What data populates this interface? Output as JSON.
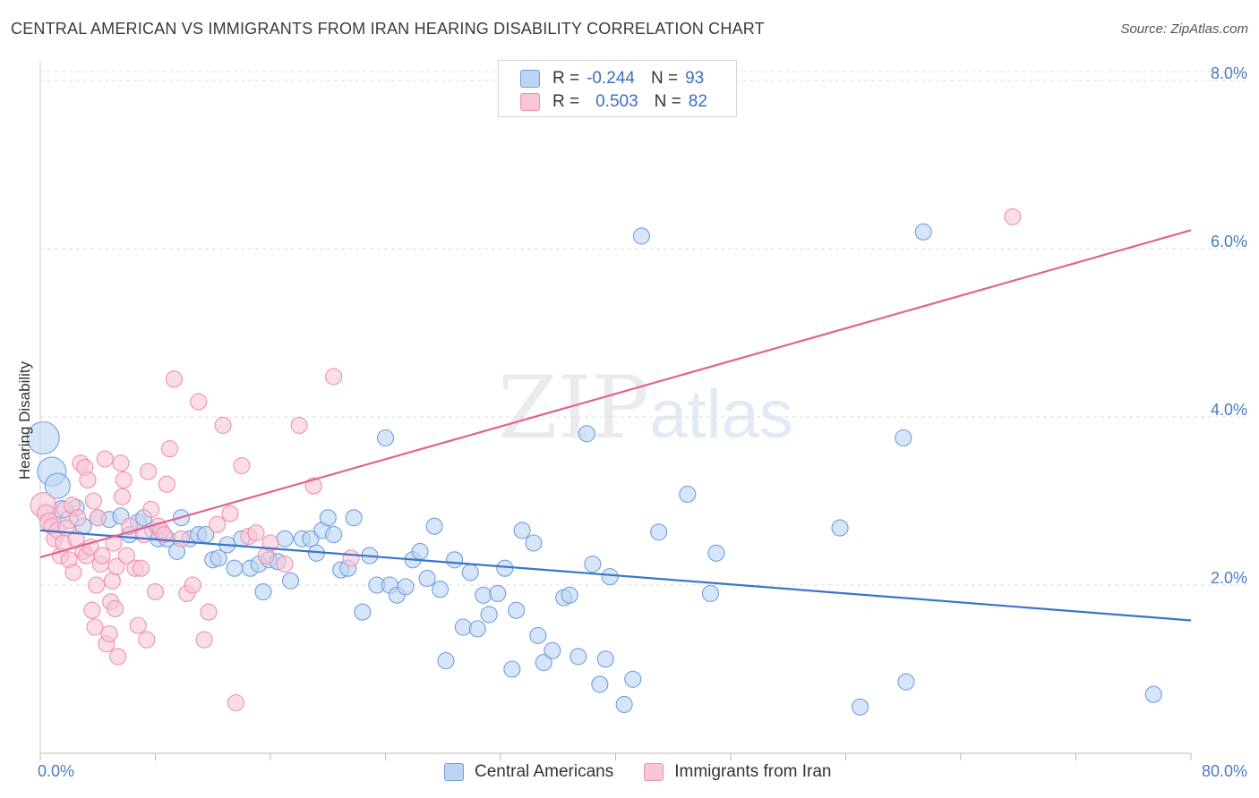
{
  "title": "CENTRAL AMERICAN VS IMMIGRANTS FROM IRAN HEARING DISABILITY CORRELATION CHART",
  "source": "Source: ZipAtlas.com",
  "watermark": {
    "zip": "ZIP",
    "atlas": "atlas"
  },
  "legend_top": {
    "rows": [
      {
        "r_label": "R =",
        "r_value": "-0.244",
        "n_label": "N =",
        "n_value": "93"
      },
      {
        "r_label": "R =",
        "r_value": "0.503",
        "n_label": "N =",
        "n_value": "82"
      }
    ]
  },
  "chart_data": {
    "type": "scatter",
    "ylabel": "Hearing Disability",
    "xlim": [
      0,
      80
    ],
    "ylim": [
      0,
      8.3
    ],
    "x_tick_labels": [
      {
        "value": 0,
        "label": "0.0%"
      },
      {
        "value": 80,
        "label": "80.0%"
      }
    ],
    "y_tick_labels": [
      {
        "value": 2,
        "label": "2.0%"
      },
      {
        "value": 4,
        "label": "4.0%"
      },
      {
        "value": 6,
        "label": "6.0%"
      },
      {
        "value": 8,
        "label": "8.0%"
      }
    ],
    "grid": true,
    "legend_placement": "bottom-center",
    "series": [
      {
        "name": "Central Americans",
        "color": "#6f9fe0",
        "fill": "#bcd3f3",
        "line_color": "#3a75c9",
        "trend": {
          "x": [
            0,
            80
          ],
          "y": [
            2.65,
            1.58
          ]
        },
        "points": [
          [
            0.2,
            3.75,
            18
          ],
          [
            0.8,
            3.35,
            16
          ],
          [
            1.2,
            3.18,
            14
          ],
          [
            1.5,
            2.9,
            10
          ],
          [
            2.0,
            2.78,
            10
          ],
          [
            2.5,
            2.92,
            9
          ],
          [
            3.0,
            2.7,
            9
          ],
          [
            4.0,
            2.8,
            9
          ],
          [
            4.8,
            2.78,
            9
          ],
          [
            5.6,
            2.82,
            9
          ],
          [
            6.2,
            2.6,
            9
          ],
          [
            6.8,
            2.75,
            9
          ],
          [
            7.2,
            2.8,
            9
          ],
          [
            7.8,
            2.65,
            9
          ],
          [
            8.2,
            2.55,
            9
          ],
          [
            8.8,
            2.55,
            9
          ],
          [
            9.5,
            2.4,
            9
          ],
          [
            9.8,
            2.8,
            9
          ],
          [
            10.4,
            2.55,
            9
          ],
          [
            11.0,
            2.6,
            9
          ],
          [
            11.5,
            2.6,
            9
          ],
          [
            12.0,
            2.3,
            9
          ],
          [
            12.4,
            2.32,
            9
          ],
          [
            13.0,
            2.48,
            9
          ],
          [
            13.5,
            2.2,
            9
          ],
          [
            14.0,
            2.55,
            9
          ],
          [
            14.6,
            2.2,
            9
          ],
          [
            15.2,
            2.25,
            9
          ],
          [
            15.5,
            1.92,
            9
          ],
          [
            15.9,
            2.3,
            9
          ],
          [
            16.5,
            2.28,
            9
          ],
          [
            17.0,
            2.55,
            9
          ],
          [
            17.4,
            2.05,
            9
          ],
          [
            18.2,
            2.55,
            9
          ],
          [
            18.8,
            2.55,
            9
          ],
          [
            19.2,
            2.38,
            9
          ],
          [
            19.6,
            2.65,
            9
          ],
          [
            20.0,
            2.8,
            9
          ],
          [
            20.4,
            2.6,
            9
          ],
          [
            20.9,
            2.18,
            9
          ],
          [
            21.4,
            2.2,
            9
          ],
          [
            21.8,
            2.8,
            9
          ],
          [
            22.4,
            1.68,
            9
          ],
          [
            22.9,
            2.35,
            9
          ],
          [
            23.4,
            2.0,
            9
          ],
          [
            24.0,
            3.75,
            9
          ],
          [
            24.3,
            2.0,
            9
          ],
          [
            24.8,
            1.88,
            9
          ],
          [
            25.4,
            1.98,
            9
          ],
          [
            25.9,
            2.3,
            9
          ],
          [
            26.4,
            2.4,
            9
          ],
          [
            26.9,
            2.08,
            9
          ],
          [
            27.4,
            2.7,
            9
          ],
          [
            27.8,
            1.95,
            9
          ],
          [
            28.2,
            1.1,
            9
          ],
          [
            28.8,
            2.3,
            9
          ],
          [
            29.4,
            1.5,
            9
          ],
          [
            29.9,
            2.15,
            9
          ],
          [
            30.4,
            1.48,
            9
          ],
          [
            30.8,
            1.88,
            9
          ],
          [
            31.2,
            1.65,
            9
          ],
          [
            31.8,
            1.9,
            9
          ],
          [
            32.3,
            2.2,
            9
          ],
          [
            32.8,
            1.0,
            9
          ],
          [
            33.1,
            1.7,
            9
          ],
          [
            33.5,
            2.65,
            9
          ],
          [
            34.3,
            2.5,
            9
          ],
          [
            34.6,
            1.4,
            9
          ],
          [
            35.0,
            1.08,
            9
          ],
          [
            35.6,
            1.22,
            9
          ],
          [
            36.4,
            1.85,
            9
          ],
          [
            36.8,
            1.88,
            9
          ],
          [
            37.4,
            1.15,
            9
          ],
          [
            38.0,
            3.8,
            9
          ],
          [
            38.4,
            2.25,
            9
          ],
          [
            38.9,
            0.82,
            9
          ],
          [
            39.3,
            1.12,
            9
          ],
          [
            39.6,
            2.1,
            9
          ],
          [
            40.6,
            0.58,
            9
          ],
          [
            41.2,
            0.88,
            9
          ],
          [
            41.8,
            6.15,
            9
          ],
          [
            43.0,
            2.63,
            9
          ],
          [
            45.0,
            3.08,
            9
          ],
          [
            46.6,
            1.9,
            9
          ],
          [
            47.0,
            2.38,
            9
          ],
          [
            55.6,
            2.68,
            9
          ],
          [
            57.0,
            0.55,
            9
          ],
          [
            60.0,
            3.75,
            9
          ],
          [
            60.2,
            0.85,
            9
          ],
          [
            61.4,
            6.2,
            9
          ],
          [
            77.4,
            0.7,
            9
          ]
        ]
      },
      {
        "name": "Immigrants from Iran",
        "color": "#f08fb0",
        "fill": "#f9c6d6",
        "line_color": "#e0648f",
        "trend": {
          "x": [
            0,
            80
          ],
          "y": [
            2.33,
            6.22
          ]
        },
        "points": [
          [
            0.2,
            2.95,
            14
          ],
          [
            0.4,
            2.85,
            10
          ],
          [
            0.6,
            2.75,
            10
          ],
          [
            0.8,
            2.7,
            9
          ],
          [
            1.0,
            2.55,
            9
          ],
          [
            1.2,
            2.65,
            9
          ],
          [
            1.4,
            2.35,
            9
          ],
          [
            1.6,
            2.5,
            9
          ],
          [
            1.7,
            2.9,
            9
          ],
          [
            1.8,
            2.68,
            9
          ],
          [
            2.0,
            2.3,
            9
          ],
          [
            2.2,
            2.95,
            9
          ],
          [
            2.3,
            2.15,
            9
          ],
          [
            2.5,
            2.55,
            9
          ],
          [
            2.6,
            2.8,
            9
          ],
          [
            2.8,
            3.45,
            9
          ],
          [
            3.0,
            2.4,
            9
          ],
          [
            3.1,
            3.4,
            9
          ],
          [
            3.2,
            2.35,
            9
          ],
          [
            3.3,
            3.25,
            9
          ],
          [
            3.5,
            2.45,
            9
          ],
          [
            3.6,
            1.7,
            9
          ],
          [
            3.7,
            3.0,
            9
          ],
          [
            3.8,
            1.5,
            9
          ],
          [
            3.9,
            2.0,
            9
          ],
          [
            4.0,
            2.8,
            9
          ],
          [
            4.2,
            2.25,
            9
          ],
          [
            4.3,
            2.35,
            9
          ],
          [
            4.5,
            3.5,
            9
          ],
          [
            4.6,
            1.3,
            9
          ],
          [
            4.8,
            1.42,
            9
          ],
          [
            4.9,
            1.8,
            9
          ],
          [
            5.0,
            2.05,
            9
          ],
          [
            5.1,
            2.5,
            9
          ],
          [
            5.2,
            1.72,
            9
          ],
          [
            5.3,
            2.22,
            9
          ],
          [
            5.4,
            1.15,
            9
          ],
          [
            5.6,
            3.45,
            9
          ],
          [
            5.7,
            3.05,
            9
          ],
          [
            5.8,
            3.25,
            9
          ],
          [
            6.0,
            2.35,
            9
          ],
          [
            6.2,
            2.7,
            9
          ],
          [
            6.6,
            2.2,
            9
          ],
          [
            6.8,
            1.52,
            9
          ],
          [
            7.0,
            2.2,
            9
          ],
          [
            7.2,
            2.6,
            9
          ],
          [
            7.4,
            1.35,
            9
          ],
          [
            7.5,
            3.35,
            9
          ],
          [
            7.7,
            2.9,
            9
          ],
          [
            8.0,
            1.92,
            9
          ],
          [
            8.2,
            2.7,
            9
          ],
          [
            8.4,
            2.65,
            9
          ],
          [
            8.6,
            2.6,
            9
          ],
          [
            8.8,
            3.2,
            9
          ],
          [
            9.0,
            3.62,
            9
          ],
          [
            9.3,
            4.45,
            9
          ],
          [
            9.8,
            2.55,
            9
          ],
          [
            10.2,
            1.9,
            9
          ],
          [
            10.6,
            2.0,
            9
          ],
          [
            11.0,
            4.18,
            9
          ],
          [
            11.4,
            1.35,
            9
          ],
          [
            11.7,
            1.68,
            9
          ],
          [
            12.3,
            2.72,
            9
          ],
          [
            12.7,
            3.9,
            9
          ],
          [
            13.2,
            2.85,
            9
          ],
          [
            13.6,
            0.6,
            9
          ],
          [
            14.0,
            3.42,
            9
          ],
          [
            14.5,
            2.58,
            9
          ],
          [
            15.0,
            2.62,
            9
          ],
          [
            15.7,
            2.35,
            9
          ],
          [
            16.0,
            2.5,
            9
          ],
          [
            17.0,
            2.25,
            9
          ],
          [
            18.0,
            3.9,
            9
          ],
          [
            19.0,
            3.18,
            9
          ],
          [
            20.4,
            4.48,
            9
          ],
          [
            21.6,
            2.32,
            9
          ],
          [
            67.6,
            6.38,
            9
          ]
        ]
      }
    ]
  }
}
